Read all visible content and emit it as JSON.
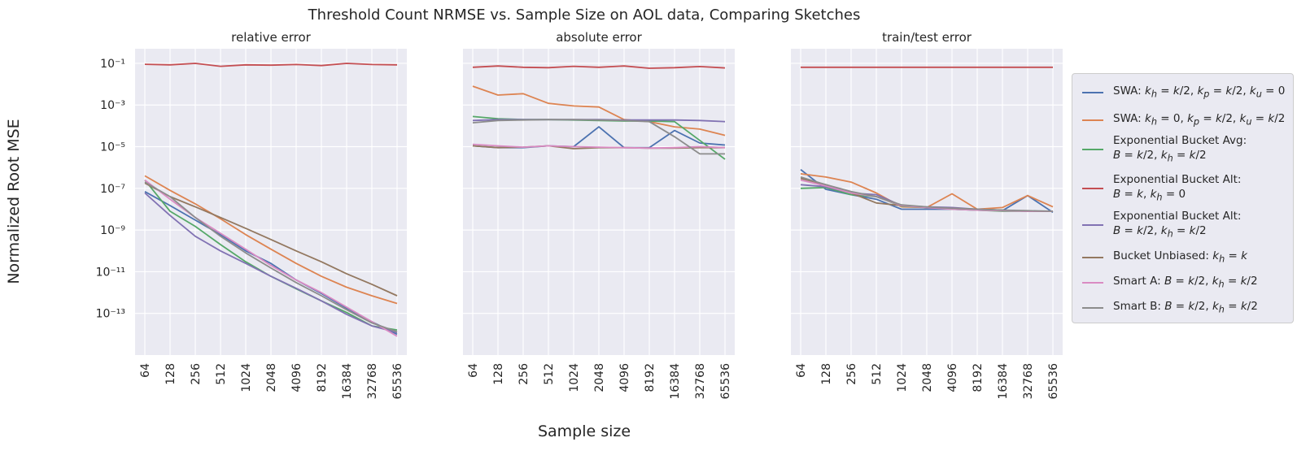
{
  "chart_data": {
    "type": "line",
    "title": "Threshold Count NRMSE vs. Sample Size on AOL data, Comparing Sketches",
    "xlabel": "Sample size",
    "ylabel": "Normalized Root MSE",
    "yscale": "log",
    "ylim_log10": [
      -15,
      -0.3
    ],
    "ytick_labels": [
      "10⁻¹",
      "10⁻³",
      "10⁻⁵",
      "10⁻⁷",
      "10⁻⁹",
      "10⁻¹¹",
      "10⁻¹³"
    ],
    "categories": [
      "64",
      "128",
      "256",
      "512",
      "1024",
      "2048",
      "4096",
      "8192",
      "16384",
      "32768",
      "65536"
    ],
    "grid": true,
    "legend_position": "right",
    "series_meta": [
      {
        "name": "SWA: k_h = k/2, k_p = k/2, k_u = 0",
        "color": "#4c72b0"
      },
      {
        "name": "SWA: k_h = 0, k_p = k/2, k_u = k/2",
        "color": "#dd8452"
      },
      {
        "name": "Exponential Bucket Avg:\nB = k/2, k_h = k/2",
        "color": "#55a868"
      },
      {
        "name": "Exponential Bucket Alt:\nB = k, k_h = 0",
        "color": "#c44e52"
      },
      {
        "name": "Exponential Bucket Alt:\nB = k/2, k_h = k/2",
        "color": "#8172b3"
      },
      {
        "name": "Bucket Unbiased: k_h = k",
        "color": "#937860"
      },
      {
        "name": "Smart A: B = k/2, k_h = k/2",
        "color": "#da8bc3"
      },
      {
        "name": "Smart B: B = k/2, k_h = k/2",
        "color": "#8c8c8c"
      }
    ],
    "panels": [
      {
        "title": "relative error",
        "series": [
          {
            "name": "SWA: k_h = k/2, k_p = k/2, k_u = 0",
            "values": [
              7e-08,
              1.5e-08,
              3e-09,
              6e-10,
              1e-10,
              2.5e-11,
              4e-12,
              9e-13,
              1.8e-13,
              4e-14,
              1e-14
            ]
          },
          {
            "name": "SWA: k_h = 0, k_p = k/2, k_u = k/2",
            "values": [
              4e-07,
              8e-08,
              1.8e-08,
              3.5e-09,
              6e-10,
              1.2e-10,
              2.5e-11,
              6e-12,
              1.8e-12,
              7e-13,
              3e-13
            ]
          },
          {
            "name": "Exponential Bucket Avg:\nB = k/2, k_h = k/2",
            "values": [
              2.5e-07,
              8e-09,
              1.5e-09,
              2e-10,
              3e-11,
              6e-12,
              1.5e-12,
              4e-13,
              1.1e-13,
              2.5e-14,
              1.6e-14
            ]
          },
          {
            "name": "Exponential Bucket Alt:\nB = k, k_h = 0",
            "values": [
              0.09,
              0.085,
              0.1,
              0.072,
              0.085,
              0.082,
              0.088,
              0.078,
              0.1,
              0.088,
              0.085
            ]
          },
          {
            "name": "Exponential Bucket Alt:\nB = k/2, k_h = k/2",
            "values": [
              6e-08,
              5e-09,
              5e-10,
              1e-10,
              2.5e-11,
              6e-12,
              1.6e-12,
              4e-13,
              9e-14,
              2.5e-14,
              1.2e-14
            ]
          },
          {
            "name": "Bucket Unbiased: k_h = k",
            "values": [
              1.8e-07,
              4e-08,
              1.3e-08,
              4e-09,
              1.2e-09,
              3.5e-10,
              1e-10,
              3e-11,
              8e-12,
              2.5e-12,
              7e-13
            ]
          },
          {
            "name": "Smart A: B = k/2, k_h = k/2",
            "values": [
              2.5e-07,
              3e-08,
              4e-09,
              7e-10,
              1.2e-10,
              2e-11,
              4e-12,
              1e-12,
              2e-13,
              4e-14,
              8e-15
            ]
          },
          {
            "name": "Smart B: B = k/2, k_h = k/2",
            "values": [
              2e-07,
              4e-08,
              4e-09,
              5e-10,
              8e-11,
              1.5e-11,
              3e-12,
              7e-13,
              1.5e-13,
              3.5e-14,
              1.3e-14
            ]
          }
        ]
      },
      {
        "title": "absolute error",
        "series": [
          {
            "name": "SWA: k_h = k/2, k_p = k/2, k_u = 0",
            "values": [
              1.1e-05,
              9e-06,
              9e-06,
              1.1e-05,
              1e-05,
              9e-05,
              9e-06,
              9e-06,
              6e-05,
              1.5e-05,
              1.2e-05
            ]
          },
          {
            "name": "SWA: k_h = 0, k_p = k/2, k_u = k/2",
            "values": [
              0.008,
              0.003,
              0.0035,
              0.0012,
              0.0009,
              0.0008,
              0.0002,
              0.00016,
              9e-05,
              7e-05,
              3.5e-05
            ]
          },
          {
            "name": "Exponential Bucket Avg:\nB = k/2, k_h = k/2",
            "values": [
              0.00028,
              0.00022,
              0.0002,
              0.0002,
              0.00019,
              0.00018,
              0.00017,
              0.00017,
              0.00016,
              2e-05,
              2.5e-06
            ]
          },
          {
            "name": "Exponential Bucket Alt:\nB = k, k_h = 0",
            "values": [
              0.065,
              0.075,
              0.065,
              0.062,
              0.072,
              0.065,
              0.075,
              0.058,
              0.062,
              0.07,
              0.06
            ]
          },
          {
            "name": "Exponential Bucket Alt:\nB = k/2, k_h = k/2",
            "values": [
              0.00018,
              0.0002,
              0.0002,
              0.0002,
              0.0002,
              0.0002,
              0.00019,
              0.00019,
              0.00019,
              0.00018,
              0.00016
            ]
          },
          {
            "name": "Bucket Unbiased: k_h = k",
            "values": [
              1.1e-05,
              9e-06,
              9.5e-06,
              1.1e-05,
              8e-06,
              9e-06,
              9e-06,
              8.5e-06,
              8.5e-06,
              9e-06,
              9e-06
            ]
          },
          {
            "name": "Smart A: B = k/2, k_h = k/2",
            "values": [
              1.3e-05,
              1.1e-05,
              9.5e-06,
              1.1e-05,
              1e-05,
              9.5e-06,
              9e-06,
              8.5e-06,
              9e-06,
              1e-05,
              9e-06
            ]
          },
          {
            "name": "Smart B: B = k/2, k_h = k/2",
            "values": [
              0.00014,
              0.00018,
              0.00019,
              0.0002,
              0.0002,
              0.00019,
              0.00018,
              0.00016,
              3e-05,
              4.5e-06,
              4.5e-06
            ]
          }
        ]
      },
      {
        "title": "train/test error",
        "series": [
          {
            "name": "SWA: k_h = k/2, k_p = k/2, k_u = 0",
            "values": [
              8e-07,
              9e-08,
              5e-08,
              3e-08,
              1e-08,
              1e-08,
              1e-08,
              9e-09,
              8.5e-09,
              4.5e-08,
              7e-09
            ]
          },
          {
            "name": "SWA: k_h = 0, k_p = k/2, k_u = k/2",
            "values": [
              5e-07,
              3.5e-07,
              2e-07,
              6e-08,
              1.3e-08,
              1.2e-08,
              5.5e-08,
              1e-08,
              1.2e-08,
              4.5e-08,
              1.3e-08
            ]
          },
          {
            "name": "Exponential Bucket Avg:\nB = k/2, k_h = k/2",
            "values": [
              1e-07,
              1.1e-07,
              5e-08,
              4e-08,
              1.4e-08,
              1.2e-08,
              1e-08,
              9e-09,
              8e-09,
              8e-09,
              8e-09
            ]
          },
          {
            "name": "Exponential Bucket Alt:\nB = k, k_h = 0",
            "values": [
              0.065,
              0.065,
              0.065,
              0.065,
              0.065,
              0.065,
              0.065,
              0.065,
              0.065,
              0.065,
              0.065
            ]
          },
          {
            "name": "Exponential Bucket Alt:\nB = k/2, k_h = k/2",
            "values": [
              1.5e-07,
              1.2e-07,
              6e-08,
              5e-08,
              1.5e-08,
              1.3e-08,
              1.2e-08,
              1e-08,
              9e-09,
              8e-09,
              8e-09
            ]
          },
          {
            "name": "Bucket Unbiased: k_h = k",
            "values": [
              3e-07,
              1.5e-07,
              6e-08,
              2e-08,
              1.5e-08,
              1.2e-08,
              1.1e-08,
              1e-08,
              9e-09,
              8e-09,
              8e-09
            ]
          },
          {
            "name": "Smart A: B = k/2, k_h = k/2",
            "values": [
              2.5e-07,
              1.3e-07,
              6e-08,
              4e-08,
              1.5e-08,
              1.2e-08,
              1e-08,
              9e-09,
              8.5e-09,
              8e-09,
              8e-09
            ]
          },
          {
            "name": "Smart B: B = k/2, k_h = k/2",
            "values": [
              3.5e-07,
              1.5e-07,
              7e-08,
              4e-08,
              1.6e-08,
              1.3e-08,
              1.1e-08,
              1e-08,
              9e-09,
              8.5e-09,
              8e-09
            ]
          }
        ]
      }
    ]
  }
}
